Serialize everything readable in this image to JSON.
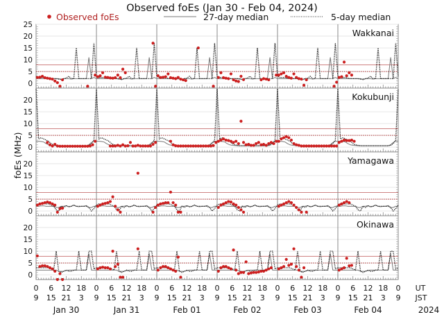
{
  "chart_data": {
    "type": "scatter",
    "title": "Observed foEs (Jan 30 - Feb 04, 2024)",
    "ylabel": "foEs (MHz)",
    "xlabel_ut": "UT",
    "xlabel_jst": "JST",
    "year_label": "2024",
    "legend": {
      "placement": "top",
      "observed": "Observed foEs",
      "median27": "27-day median",
      "median5": "5-day median"
    },
    "colors": {
      "observed": "#cc1f1f",
      "median27": "#777777",
      "median5": "#111111",
      "reference": "#b03030",
      "separator": "#888888"
    },
    "ylim": [
      -2,
      25
    ],
    "x_unit": "hours UT from Jan 30 00:00",
    "ut_tick_labels": [
      "0",
      "6",
      "12",
      "18",
      "0",
      "6",
      "12",
      "18",
      "0",
      "6",
      "12",
      "18",
      "0",
      "6",
      "12",
      "18",
      "0",
      "6",
      "12",
      "18",
      "0",
      "6",
      "12",
      "18",
      "0"
    ],
    "jst_tick_labels": [
      "9",
      "15",
      "21",
      "3",
      "9",
      "15",
      "21",
      "3",
      "9",
      "15",
      "21",
      "3",
      "9",
      "15",
      "21",
      "3",
      "9",
      "15",
      "21",
      "3",
      "9",
      "15",
      "21",
      "3",
      "9"
    ],
    "date_labels": [
      "Jan 30",
      "Jan 31",
      "Feb 01",
      "Feb 02",
      "Feb 03",
      "Feb 04"
    ],
    "reference_lines": {
      "solid": 7.8,
      "dotted": 5
    },
    "stations": [
      {
        "name": "Wakkanai",
        "y_tick_labels": [
          "0",
          "5",
          "10",
          "15",
          "20",
          "25"
        ],
        "y_ticks": [
          0,
          5,
          10,
          15,
          20,
          25
        ],
        "median27": [
          2,
          2,
          2,
          2,
          2,
          2,
          2,
          2,
          2,
          2,
          1.5,
          2,
          2,
          2,
          1.8,
          2,
          2,
          2,
          2,
          2,
          2,
          11,
          2,
          2.5
        ],
        "median5": [
          3,
          2.5,
          2.5,
          2.5,
          2.2,
          2,
          2,
          2,
          2,
          1.8,
          1.8,
          2,
          2.2,
          3,
          2,
          2,
          15,
          2,
          2,
          2,
          2,
          2,
          2,
          17
        ],
        "observed": [
          [
            2.5,
            2.6,
            3.0,
            2.4,
            2.2,
            2.0,
            1.8,
            1.0,
            0.3,
            -1.2,
            1.5,
            null,
            null,
            null,
            null,
            null,
            null,
            null,
            null,
            null,
            -1.2,
            null,
            null,
            3.5
          ],
          [
            2.8,
            3.2,
            4.5,
            2.6,
            2.5,
            2.3,
            2.2,
            2.4,
            3.5,
            2.4,
            6.0,
            4.5,
            null,
            null,
            null,
            null,
            null,
            null,
            null,
            null,
            null,
            null,
            17,
            -1.2
          ],
          [
            3.2,
            2.5,
            2.6,
            2.8,
            4.0,
            2.4,
            2.2,
            2.0,
            2.5,
            1.8,
            1.5,
            1.2,
            null,
            null,
            null,
            null,
            15,
            null,
            null,
            null,
            null,
            null,
            -1.2,
            null
          ],
          [
            2.5,
            4.5,
            2.4,
            2.2,
            2.0,
            4.0,
            1.5,
            1.0,
            0.8,
            3.0,
            1.6,
            null,
            null,
            null,
            null,
            null,
            null,
            1.5,
            2.0,
            1.8,
            1.5,
            null,
            null,
            3.5
          ],
          [
            3.5,
            4.0,
            4.5,
            3.0,
            2.5,
            2.2,
            4.0,
            2.5,
            2.0,
            1.8,
            -0.8,
            1.5,
            null,
            null,
            null,
            null,
            null,
            null,
            null,
            null,
            null,
            null,
            -1.2,
            0.5
          ],
          [
            2.5,
            2.8,
            9.0,
            3.2,
            4.5,
            3.5,
            null,
            null,
            null,
            null,
            null,
            null,
            null,
            null,
            null,
            null,
            null,
            null,
            null,
            null,
            null,
            null,
            null,
            null
          ]
        ]
      },
      {
        "name": "Kokubunji",
        "y_tick_labels": [
          "0",
          "5",
          "10",
          "15",
          "20"
        ],
        "y_ticks": [
          0,
          5,
          10,
          15,
          20
        ],
        "median27": [
          2.5,
          2.5,
          2.4,
          2.2,
          1.5,
          1,
          0.8,
          0.7,
          0.6,
          0.6,
          0.6,
          0.6,
          0.6,
          0.6,
          0.6,
          0.6,
          0.6,
          0.6,
          0.6,
          0.6,
          0.6,
          1,
          2,
          2.5
        ],
        "median5": [
          25,
          3.5,
          4,
          3.5,
          3,
          2.5,
          1.5,
          1,
          0.8,
          0.6,
          0.6,
          0.6,
          0.6,
          0.6,
          0.6,
          0.6,
          0.6,
          0.6,
          0.6,
          0.6,
          0.6,
          0.8,
          1.5,
          3
        ],
        "observed": [
          [
            null,
            null,
            null,
            null,
            2.0,
            1.0,
            0.5,
            1.2,
            0.5,
            0.4,
            0.4,
            0.4,
            0.4,
            0.4,
            0.4,
            0.4,
            0.4,
            0.4,
            0.4,
            0.4,
            0.4,
            0.5,
            1.0,
            2.5
          ],
          [
            null,
            null,
            null,
            null,
            null,
            0.5,
            0.5,
            0.5,
            0.8,
            0.5,
            1.0,
            0.5,
            0.6,
            2.0,
            0.5,
            0.5,
            0.8,
            0.5,
            0.5,
            0.5,
            0.5,
            0.5,
            1.2,
            2.0
          ],
          [
            null,
            null,
            null,
            null,
            null,
            2.5,
            1.0,
            0.6,
            0.5,
            0.5,
            0.5,
            0.5,
            0.5,
            0.5,
            0.5,
            0.5,
            0.5,
            0.5,
            0.5,
            0.5,
            0.5,
            0.5,
            0.7,
            2.0
          ],
          [
            2.5,
            3.0,
            3.5,
            3.0,
            2.8,
            2.5,
            2.0,
            2.5,
            1.5,
            11,
            2.0,
            1.0,
            1.2,
            0.8,
            0.8,
            1.5,
            2.0,
            1.0,
            1.2,
            0.8,
            1.5,
            2.0,
            1.5,
            2.5
          ],
          [
            2.5,
            3.5,
            4.0,
            4.5,
            4.0,
            3.0,
            1.5,
            1.0,
            0.8,
            0.5,
            0.5,
            0.5,
            0.5,
            0.5,
            0.5,
            0.5,
            0.5,
            0.5,
            0.5,
            0.5,
            0.5,
            0.5,
            0.5,
            0.5
          ],
          [
            2.0,
            2.5,
            3.0,
            2.8,
            2.8,
            3.0,
            2.5,
            null,
            null,
            null,
            null,
            null,
            null,
            null,
            null,
            null,
            null,
            null,
            null,
            null,
            null,
            null,
            null,
            null
          ]
        ]
      },
      {
        "name": "Yamagawa",
        "y_tick_labels": [
          "0",
          "5",
          "10",
          "15",
          "20"
        ],
        "y_ticks": [
          0,
          5,
          10,
          15,
          20
        ],
        "median27": [
          2,
          2,
          2.2,
          2.2,
          2,
          2,
          2,
          2,
          1.5,
          1.5,
          2,
          2,
          2.3,
          1.8,
          2,
          2.5,
          2,
          1.8,
          2,
          2,
          2.3,
          1.5,
          1.5,
          2
        ],
        "median5": [
          2.5,
          3,
          3,
          3,
          3,
          3,
          2.5,
          2,
          0.5,
          0,
          2,
          1.5,
          2.2,
          1.8,
          2,
          2.5,
          2,
          2,
          2,
          2,
          2,
          1.5,
          0,
          1
        ],
        "observed": [
          [
            2.5,
            3.0,
            3.2,
            3.5,
            3.8,
            3.5,
            3.0,
            2.5,
            -0.5,
            1.0,
            1.2,
            null,
            null,
            null,
            null,
            null,
            null,
            null,
            null,
            null,
            null,
            null,
            null,
            null
          ],
          [
            2.0,
            2.5,
            3.0,
            3.2,
            3.5,
            4.0,
            6.0,
            2.0,
            0.5,
            -0.5,
            null,
            null,
            null,
            null,
            null,
            null,
            16,
            null,
            null,
            null,
            null,
            null,
            -0.5,
            1.5
          ],
          [
            2.5,
            3.0,
            3.2,
            3.5,
            3.5,
            8.0,
            3.5,
            2.5,
            -0.5,
            -0.5,
            null,
            null,
            null,
            null,
            null,
            null,
            null,
            null,
            null,
            null,
            null,
            null,
            null,
            null
          ],
          [
            1.5,
            2.5,
            3.0,
            3.5,
            4.0,
            3.8,
            3.0,
            2.5,
            1.5,
            0.5,
            -0.5,
            null,
            null,
            null,
            null,
            null,
            null,
            null,
            null,
            null,
            null,
            null,
            null,
            null
          ],
          [
            2.0,
            2.5,
            3.0,
            3.5,
            4.0,
            3.5,
            2.5,
            1.5,
            0.5,
            -0.5,
            null,
            -0.5,
            null,
            null,
            null,
            null,
            null,
            null,
            null,
            null,
            null,
            null,
            null,
            null
          ],
          [
            2.5,
            3.0,
            3.5,
            4.0,
            3.5,
            null,
            null,
            null,
            null,
            null,
            null,
            null,
            null,
            null,
            null,
            null,
            null,
            null,
            null,
            null,
            null,
            null,
            null,
            null
          ]
        ]
      },
      {
        "name": "Okinawa",
        "y_tick_labels": [
          "0",
          "5",
          "10",
          "15",
          "20"
        ],
        "y_ticks": [
          0,
          5,
          10,
          15,
          20
        ],
        "median27": [
          2,
          2,
          2,
          2,
          2,
          2,
          2,
          2,
          2,
          1.5,
          1.5,
          1.5,
          1.8,
          2,
          2,
          2,
          2,
          2,
          2,
          2,
          2,
          9,
          2,
          2
        ],
        "median5": [
          3,
          3,
          3,
          3,
          3,
          3,
          2.5,
          2,
          10,
          1.5,
          1,
          1.5,
          2,
          1.5,
          1.5,
          2,
          2,
          10,
          2,
          2,
          2,
          10,
          10,
          2.5
        ],
        "observed": [
          [
            8.0,
            3.5,
            3.8,
            3.8,
            3.5,
            3.0,
            2.5,
            1.5,
            -2,
            0.5,
            -2,
            null,
            null,
            null,
            null,
            null,
            null,
            null,
            null,
            null,
            null,
            null,
            null,
            null
          ],
          [
            2.5,
            3.0,
            3.2,
            3.0,
            3.0,
            2.5,
            10,
            3.5,
            4.5,
            -1,
            -1,
            null,
            null,
            null,
            null,
            null,
            11,
            null,
            null,
            null,
            null,
            null,
            null,
            null
          ],
          [
            2.0,
            3.0,
            3.5,
            3.5,
            3.0,
            2.5,
            2.0,
            1.5,
            7.5,
            -1,
            null,
            null,
            null,
            null,
            null,
            null,
            null,
            null,
            null,
            null,
            null,
            null,
            null,
            null
          ],
          [
            1.5,
            3.0,
            3.5,
            3.5,
            3.0,
            2.5,
            10.5,
            2.0,
            0.5,
            1.0,
            1.0,
            5.5,
            0.5,
            0.8,
            1.0,
            1.0,
            1.2,
            1.5,
            1.5,
            2.0,
            2.5,
            3.0,
            null,
            null
          ],
          [
            2.5,
            3.0,
            3.5,
            6.5,
            4.0,
            4.5,
            11,
            3.5,
            2.0,
            -1,
            3.0,
            null,
            null,
            null,
            null,
            null,
            null,
            null,
            null,
            null,
            null,
            null,
            null,
            null
          ],
          [
            2.0,
            2.5,
            3.0,
            7.0,
            3.8,
            4.0,
            null,
            null,
            null,
            null,
            null,
            null,
            null,
            null,
            null,
            null,
            null,
            null,
            null,
            null,
            null,
            null,
            null,
            null
          ]
        ]
      }
    ]
  }
}
